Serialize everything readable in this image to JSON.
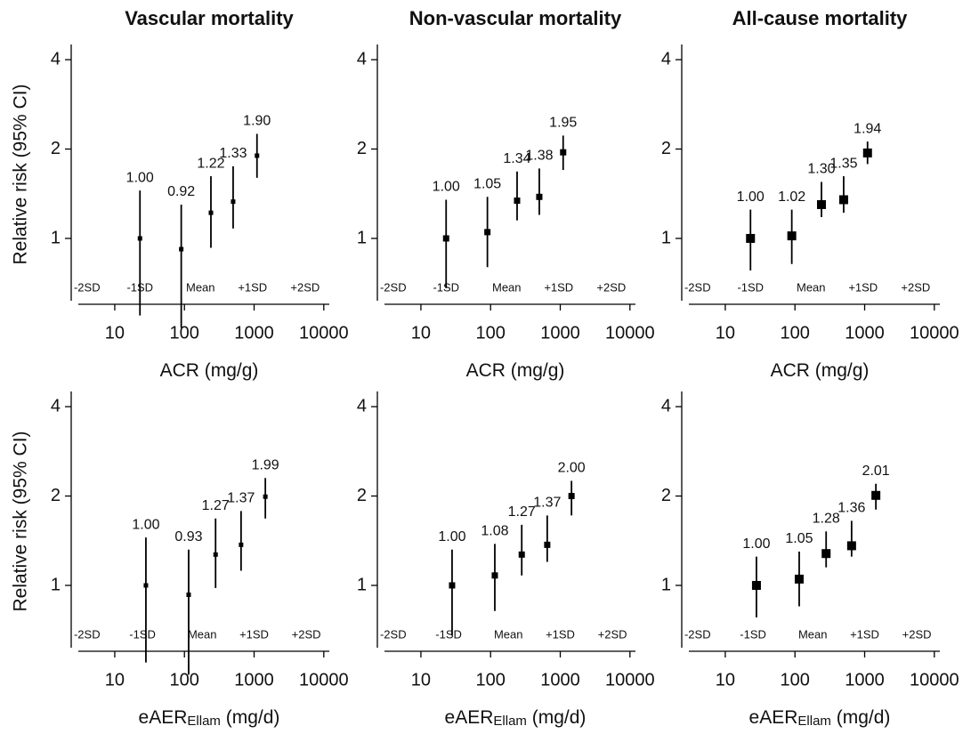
{
  "chart_data": [
    {
      "type": "scatter",
      "title": "Vascular mortality",
      "ylabel": "Relative risk (95% CI)",
      "xlabel": [
        "ACR (mg/g)"
      ],
      "xscale": "log",
      "yscale": "log",
      "xlim": [
        3,
        12000
      ],
      "ylim": [
        0.6,
        4.5
      ],
      "xticks": [
        10,
        100,
        1000,
        10000
      ],
      "yticks": [
        1,
        2,
        4
      ],
      "color": "#000000",
      "x": [
        23,
        90,
        240,
        500,
        1100
      ],
      "values": [
        1.0,
        0.92,
        1.22,
        1.33,
        1.9
      ],
      "value_labels": [
        "1.00",
        "0.92",
        "1.22",
        "1.33",
        "1.90"
      ],
      "ci_low": [
        0.55,
        0.5,
        0.93,
        1.08,
        1.6
      ],
      "ci_high": [
        1.45,
        1.3,
        1.62,
        1.75,
        2.25
      ],
      "sd_labels": [
        {
          "text": "-2SD",
          "x": 4
        },
        {
          "text": "-1SD",
          "x": 23
        },
        {
          "text": "Mean",
          "x": 170
        },
        {
          "text": "+1SD",
          "x": 950
        },
        {
          "text": "+2SD",
          "x": 5400
        }
      ]
    },
    {
      "type": "scatter",
      "title": "Non-vascular mortality",
      "xlabel": [
        "ACR (mg/g)"
      ],
      "xscale": "log",
      "yscale": "log",
      "xlim": [
        3,
        12000
      ],
      "ylim": [
        0.6,
        4.5
      ],
      "xticks": [
        10,
        100,
        1000,
        10000
      ],
      "yticks": [
        1,
        2,
        4
      ],
      "color": "#000000",
      "x": [
        23,
        90,
        240,
        500,
        1100
      ],
      "values": [
        1.0,
        1.05,
        1.34,
        1.38,
        1.95
      ],
      "value_labels": [
        "1.00",
        "1.05",
        "1.34",
        "1.38",
        "1.95"
      ],
      "ci_low": [
        0.68,
        0.8,
        1.15,
        1.2,
        1.7
      ],
      "ci_high": [
        1.35,
        1.38,
        1.68,
        1.72,
        2.22
      ],
      "sd_labels": [
        {
          "text": "-2SD",
          "x": 4
        },
        {
          "text": "-1SD",
          "x": 23
        },
        {
          "text": "Mean",
          "x": 170
        },
        {
          "text": "+1SD",
          "x": 950
        },
        {
          "text": "+2SD",
          "x": 5400
        }
      ]
    },
    {
      "type": "scatter",
      "title": "All-cause mortality",
      "xlabel": [
        "ACR (mg/g)"
      ],
      "xscale": "log",
      "yscale": "log",
      "xlim": [
        3,
        12000
      ],
      "ylim": [
        0.6,
        4.5
      ],
      "xticks": [
        10,
        100,
        1000,
        10000
      ],
      "yticks": [
        1,
        2,
        4
      ],
      "color": "#000000",
      "x": [
        23,
        90,
        240,
        500,
        1100
      ],
      "values": [
        1.0,
        1.02,
        1.3,
        1.35,
        1.94
      ],
      "value_labels": [
        "1.00",
        "1.02",
        "1.30",
        "1.35",
        "1.94"
      ],
      "ci_low": [
        0.78,
        0.82,
        1.18,
        1.22,
        1.78
      ],
      "ci_high": [
        1.25,
        1.25,
        1.55,
        1.62,
        2.12
      ],
      "sd_labels": [
        {
          "text": "-2SD",
          "x": 4
        },
        {
          "text": "-1SD",
          "x": 23
        },
        {
          "text": "Mean",
          "x": 170
        },
        {
          "text": "+1SD",
          "x": 950
        },
        {
          "text": "+2SD",
          "x": 5400
        }
      ]
    },
    {
      "type": "scatter",
      "ylabel": "Relative risk (95% CI)",
      "xlabel": [
        "eAER",
        "Ellam",
        " (mg/d)"
      ],
      "xscale": "log",
      "yscale": "log",
      "xlim": [
        3,
        12000
      ],
      "ylim": [
        0.6,
        4.5
      ],
      "xticks": [
        10,
        100,
        1000,
        10000
      ],
      "yticks": [
        1,
        2,
        4
      ],
      "color": "#000000",
      "x": [
        28,
        115,
        280,
        650,
        1450
      ],
      "values": [
        1.0,
        0.93,
        1.27,
        1.37,
        1.99
      ],
      "value_labels": [
        "1.00",
        "0.93",
        "1.27",
        "1.37",
        "1.99"
      ],
      "ci_low": [
        0.55,
        0.5,
        0.98,
        1.12,
        1.68
      ],
      "ci_high": [
        1.45,
        1.32,
        1.68,
        1.78,
        2.3
      ],
      "sd_labels": [
        {
          "text": "-2SD",
          "x": 4
        },
        {
          "text": "-1SD",
          "x": 25
        },
        {
          "text": "Mean",
          "x": 180
        },
        {
          "text": "+1SD",
          "x": 1000
        },
        {
          "text": "+2SD",
          "x": 5600
        }
      ]
    },
    {
      "type": "scatter",
      "xlabel": [
        "eAER",
        "Ellam",
        " (mg/d)"
      ],
      "xscale": "log",
      "yscale": "log",
      "xlim": [
        3,
        12000
      ],
      "ylim": [
        0.6,
        4.5
      ],
      "xticks": [
        10,
        100,
        1000,
        10000
      ],
      "yticks": [
        1,
        2,
        4
      ],
      "color": "#000000",
      "x": [
        28,
        115,
        280,
        650,
        1450
      ],
      "values": [
        1.0,
        1.08,
        1.27,
        1.37,
        2.0
      ],
      "value_labels": [
        "1.00",
        "1.08",
        "1.27",
        "1.37",
        "2.00"
      ],
      "ci_low": [
        0.68,
        0.82,
        1.08,
        1.2,
        1.72
      ],
      "ci_high": [
        1.32,
        1.38,
        1.6,
        1.72,
        2.25
      ],
      "sd_labels": [
        {
          "text": "-2SD",
          "x": 4
        },
        {
          "text": "-1SD",
          "x": 25
        },
        {
          "text": "Mean",
          "x": 180
        },
        {
          "text": "+1SD",
          "x": 1000
        },
        {
          "text": "+2SD",
          "x": 5600
        }
      ]
    },
    {
      "type": "scatter",
      "xlabel": [
        "eAER",
        "Ellam",
        " (mg/d)"
      ],
      "xscale": "log",
      "yscale": "log",
      "xlim": [
        3,
        12000
      ],
      "ylim": [
        0.6,
        4.5
      ],
      "xticks": [
        10,
        100,
        1000,
        10000
      ],
      "yticks": [
        1,
        2,
        4
      ],
      "color": "#000000",
      "x": [
        28,
        115,
        280,
        650,
        1450
      ],
      "values": [
        1.0,
        1.05,
        1.28,
        1.36,
        2.01
      ],
      "value_labels": [
        "1.00",
        "1.05",
        "1.28",
        "1.36",
        "2.01"
      ],
      "ci_low": [
        0.78,
        0.85,
        1.15,
        1.25,
        1.8
      ],
      "ci_high": [
        1.25,
        1.3,
        1.52,
        1.65,
        2.2
      ],
      "sd_labels": [
        {
          "text": "-2SD",
          "x": 4
        },
        {
          "text": "-1SD",
          "x": 25
        },
        {
          "text": "Mean",
          "x": 180
        },
        {
          "text": "+1SD",
          "x": 1000
        },
        {
          "text": "+2SD",
          "x": 5600
        }
      ]
    }
  ]
}
